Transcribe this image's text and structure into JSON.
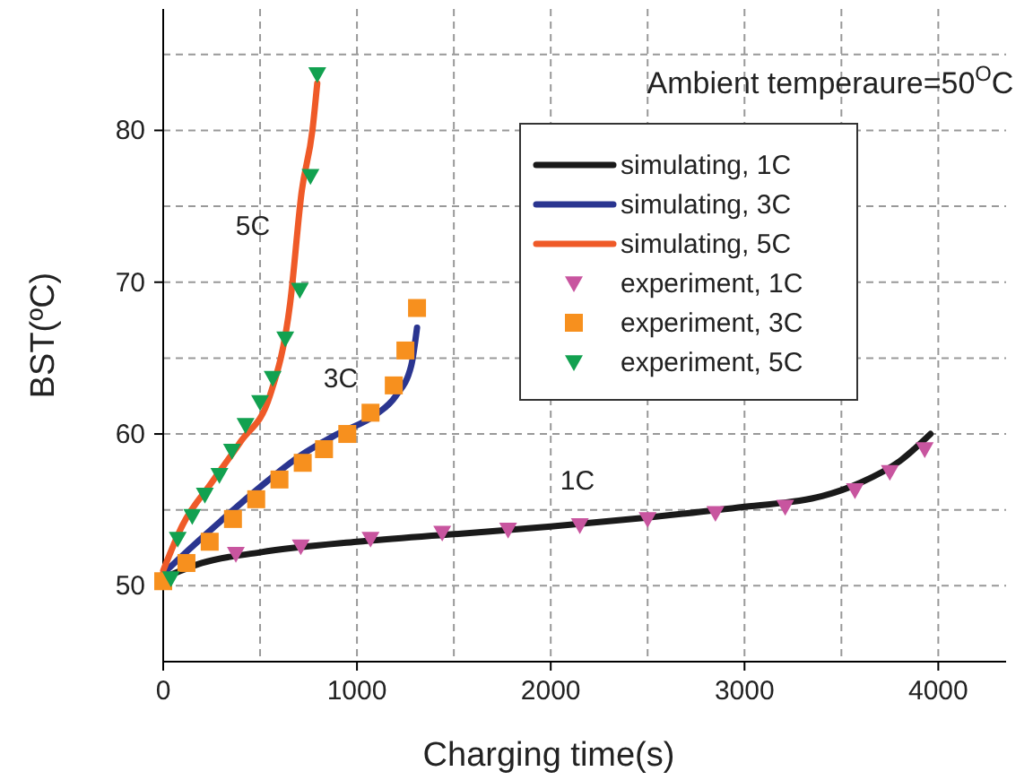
{
  "chart_data": {
    "type": "line",
    "xlabel": "Charging time(s)",
    "ylabel": "BST(ºC)",
    "xlim": [
      0,
      4350
    ],
    "ylim": [
      45,
      88
    ],
    "xticks": [
      0,
      1000,
      2000,
      3000,
      4000
    ],
    "yticks": [
      50,
      60,
      70,
      80
    ],
    "grid": true,
    "legend": "top right",
    "line_style": "dashed",
    "annotations": [
      "Ambient temperaure=50$^{O}$C",
      "5C",
      "3C",
      "1C"
    ],
    "series": [
      {
        "name": "simulating, 1C",
        "color": "#1a1a1a",
        "line_style": "solid",
        "x": [
          0,
          200,
          500,
          1000,
          1500,
          2000,
          2500,
          3000,
          3400,
          3600,
          3800,
          3960
        ],
        "values": [
          50.5,
          51.5,
          52.2,
          52.9,
          53.4,
          53.9,
          54.5,
          55.2,
          55.9,
          56.8,
          58.2,
          60
        ]
      },
      {
        "name": "simulating, 3C",
        "color": "#2a3590",
        "line_style": "solid",
        "x": [
          0,
          100,
          300,
          500,
          700,
          900,
          1100,
          1200,
          1280,
          1310
        ],
        "values": [
          50.8,
          52,
          54.3,
          56.5,
          58.5,
          60,
          61.3,
          62.5,
          64.5,
          67
        ]
      },
      {
        "name": "simulating, 5C",
        "color": "#ef5a28",
        "line_style": "solid",
        "x": [
          0,
          100,
          250,
          400,
          550,
          655,
          715,
          770,
          795
        ],
        "values": [
          51,
          54,
          56.8,
          59.5,
          62.5,
          68.6,
          76,
          80,
          83.1
        ]
      },
      {
        "name": "experiment, 1C",
        "type": "scatter",
        "color": "#c8559f",
        "marker": "triangle",
        "x": [
          375,
          710,
          1070,
          1440,
          1780,
          2150,
          2500,
          2850,
          3210,
          3570,
          3750,
          3930
        ],
        "values": [
          52.1,
          52.6,
          53.1,
          53.5,
          53.7,
          54,
          54.4,
          54.8,
          55.2,
          56.3,
          57.5,
          59
        ]
      },
      {
        "name": "experiment, 3C",
        "type": "scatter",
        "color": "#f7901e",
        "marker": "square",
        "x": [
          0,
          120,
          240,
          360,
          480,
          600,
          720,
          830,
          950,
          1070,
          1190,
          1250,
          1310
        ],
        "values": [
          50.3,
          51.5,
          52.9,
          54.4,
          55.7,
          57,
          58.1,
          59,
          60,
          61.4,
          63.2,
          65.5,
          68.3
        ]
      },
      {
        "name": "experiment, 5C",
        "type": "scatter",
        "color": "#12a150",
        "marker": "triangle",
        "x": [
          40,
          75,
          150,
          215,
          290,
          355,
          425,
          500,
          565,
          630,
          705,
          760,
          795
        ],
        "values": [
          50.5,
          53.1,
          54.6,
          56,
          57.3,
          58.9,
          60.6,
          62.1,
          63.7,
          66.3,
          69.5,
          77,
          83.7
        ]
      }
    ]
  }
}
